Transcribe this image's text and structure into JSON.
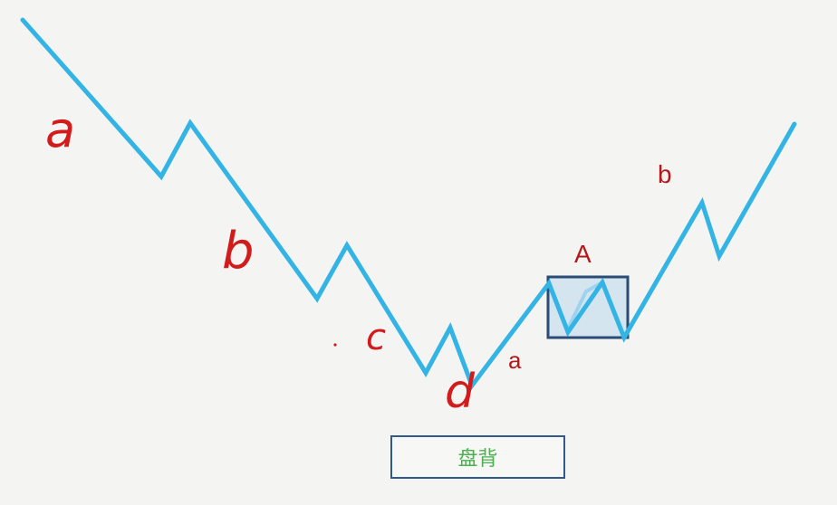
{
  "labels": {
    "down_a": "a",
    "down_b": "b",
    "down_c": "c",
    "down_d": "d",
    "up_a": "a",
    "up_A": "A",
    "up_b": "b"
  },
  "caption": "盘背",
  "colors": {
    "line": "#33b4e4",
    "label": "#d21c1c",
    "box_border": "#2c4c76",
    "box_fill": "#bcd8ee",
    "caption_text": "#4caf50",
    "caption_border": "#31598b"
  }
}
